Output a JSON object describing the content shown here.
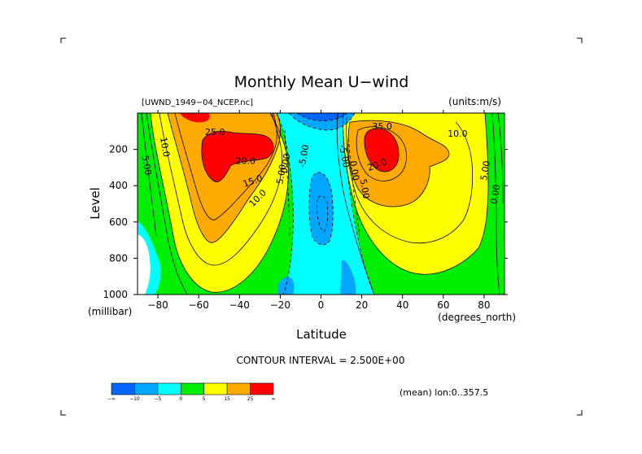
{
  "colors": {
    "bands": [
      "#0066ff",
      "#00a6ff",
      "#00ffff",
      "#00ee00",
      "#ffff00",
      "#ffaa00",
      "#ff0000",
      "#ffdd00"
    ],
    "line": "#000000",
    "background": "#ffffff"
  },
  "chart_data": {
    "type": "contour",
    "title": "Monthly Mean U−wind",
    "dataset": "[UWND_1949−04_NCEP.nc]",
    "units": "(units:m/s)",
    "xlabel": "Latitude",
    "xunits": "(degrees_north)",
    "ylabel": "Level",
    "yunits": "(millibar)",
    "xlim": [
      -90,
      90
    ],
    "ylim": [
      1000,
      0
    ],
    "x_ticks": [
      -80,
      -60,
      -40,
      -20,
      0,
      20,
      40,
      60,
      80
    ],
    "y_ticks": [
      200,
      400,
      600,
      800,
      1000
    ],
    "contour_interval_text": "CONTOUR INTERVAL = 2.500E+00",
    "footnote": "(mean) lon:0..357.5",
    "colorbar": {
      "tick_labels": [
        "−∞",
        "−10",
        "−5",
        "0",
        "5",
        "15",
        "25",
        "∞"
      ],
      "bins": [
        {
          "range": "< -10",
          "color": "#0066ff"
        },
        {
          "range": "-10 to -5",
          "color": "#00a6ff"
        },
        {
          "range": "-5 to 0",
          "color": "#00ffff"
        },
        {
          "range": "0 to 5",
          "color": "#00ee00"
        },
        {
          "range": "5 to 15",
          "color": "#ffff00"
        },
        {
          "range": "15 to 25",
          "color": "#ffaa00"
        },
        {
          "range": "> 25",
          "color": "#ff0000"
        }
      ]
    },
    "contour_labels": [
      {
        "text": "25.0",
        "lat": -52,
        "level": 120,
        "rot": 0
      },
      {
        "text": "10.0",
        "lat": -78,
        "level": 190,
        "rot": 80
      },
      {
        "text": "5.00",
        "lat": -87,
        "level": 290,
        "rot": 80
      },
      {
        "text": "20.0",
        "lat": -37,
        "level": 280,
        "rot": 0
      },
      {
        "text": "15.0",
        "lat": -33,
        "level": 390,
        "rot": -20
      },
      {
        "text": "10.0",
        "lat": -30,
        "level": 480,
        "rot": -45
      },
      {
        "text": "5.00",
        "lat": -18,
        "level": 340,
        "rot": -80
      },
      {
        "text": "0.00",
        "lat": -16,
        "level": 280,
        "rot": -80
      },
      {
        "text": "-5.00",
        "lat": -7,
        "level": 240,
        "rot": -80
      },
      {
        "text": "-5.00",
        "lat": 10,
        "level": 240,
        "rot": 80
      },
      {
        "text": "0.00",
        "lat": 15,
        "level": 320,
        "rot": 80
      },
      {
        "text": "5.00",
        "lat": 20,
        "level": 420,
        "rot": 80
      },
      {
        "text": "35.0",
        "lat": 30,
        "level": 90,
        "rot": 0
      },
      {
        "text": "20.0",
        "lat": 28,
        "level": 300,
        "rot": -20
      },
      {
        "text": "10.0",
        "lat": 67,
        "level": 130,
        "rot": 0
      },
      {
        "text": "5.00",
        "lat": 82,
        "level": 320,
        "rot": -80
      },
      {
        "text": "0.00",
        "lat": 87,
        "level": 450,
        "rot": -80
      }
    ]
  }
}
